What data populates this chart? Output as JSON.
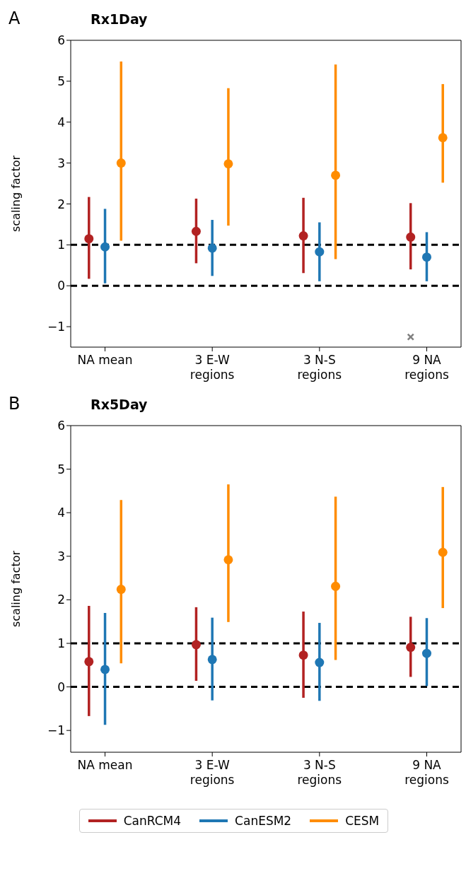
{
  "chart_data": [
    {
      "type": "scatter",
      "title": "Rx1Day",
      "ylabel": "scaling factor",
      "annotations": [
        "A"
      ],
      "categories": [
        "NA mean",
        "3 E-W regions",
        "3 N-S regions",
        "9 NA regions"
      ],
      "ylim": [
        -1.5,
        6
      ],
      "yticks": [
        {
          "value": -1,
          "label": "−1"
        },
        0,
        1,
        2,
        3,
        4,
        5,
        6
      ],
      "legend": false,
      "marker": "circle",
      "ref_lines": [
        {
          "axis": "y",
          "value": 1,
          "color": "#000000",
          "line_style": "dashed"
        },
        {
          "axis": "y",
          "value": 0,
          "color": "#000000",
          "line_style": "dashed"
        }
      ],
      "series": [
        {
          "color": "#b22222",
          "values": [
            1.15,
            1.33,
            1.22,
            1.19
          ],
          "errors": [
            [
              0.17,
              2.17
            ],
            [
              0.55,
              2.13
            ],
            [
              0.31,
              2.15
            ],
            [
              0.4,
              2.02
            ]
          ]
        },
        {
          "color": "#1f77b4",
          "values": [
            0.95,
            0.92,
            0.83,
            0.7
          ],
          "errors": [
            [
              0.06,
              1.88
            ],
            [
              0.24,
              1.61
            ],
            [
              0.11,
              1.55
            ],
            [
              0.11,
              1.31
            ]
          ]
        },
        {
          "color": "#ff8c00",
          "values": [
            3.0,
            2.98,
            2.7,
            3.62
          ],
          "errors": [
            [
              1.1,
              5.48
            ],
            [
              1.47,
              4.83
            ],
            [
              0.65,
              5.41
            ],
            [
              2.52,
              4.93
            ]
          ]
        },
        {
          "color": "#808080",
          "marker": "cross",
          "x": [
            "9 NA regions"
          ],
          "values": [
            -1.25
          ]
        }
      ]
    },
    {
      "type": "scatter",
      "title": "Rx5Day",
      "ylabel": "scaling factor",
      "annotations": [
        "B"
      ],
      "categories": [
        "NA mean",
        "3 E-W regions",
        "3 N-S regions",
        "9 NA regions"
      ],
      "ylim": [
        -1.5,
        6
      ],
      "yticks": [
        {
          "value": -1,
          "label": "−1"
        },
        0,
        1,
        2,
        3,
        4,
        5,
        6
      ],
      "legend": "bottom",
      "marker": "circle",
      "ref_lines": [
        {
          "axis": "y",
          "value": 1,
          "color": "#000000",
          "line_style": "dashed"
        },
        {
          "axis": "y",
          "value": 0,
          "color": "#000000",
          "line_style": "dashed"
        }
      ],
      "series": [
        {
          "name": "CanRCM4",
          "color": "#b22222",
          "values": [
            0.58,
            0.97,
            0.73,
            0.91
          ],
          "errors": [
            [
              -0.67,
              1.86
            ],
            [
              0.14,
              1.83
            ],
            [
              -0.25,
              1.73
            ],
            [
              0.23,
              1.61
            ]
          ]
        },
        {
          "name": "CanESM2",
          "color": "#1f77b4",
          "values": [
            0.4,
            0.63,
            0.56,
            0.77
          ],
          "errors": [
            [
              -0.87,
              1.7
            ],
            [
              -0.31,
              1.59
            ],
            [
              -0.32,
              1.47
            ],
            [
              0.02,
              1.58
            ]
          ]
        },
        {
          "name": "CESM",
          "color": "#ff8c00",
          "values": [
            2.24,
            2.92,
            2.31,
            3.09
          ],
          "errors": [
            [
              0.54,
              4.29
            ],
            [
              1.49,
              4.65
            ],
            [
              0.62,
              4.37
            ],
            [
              1.81,
              4.59
            ]
          ]
        }
      ]
    }
  ]
}
